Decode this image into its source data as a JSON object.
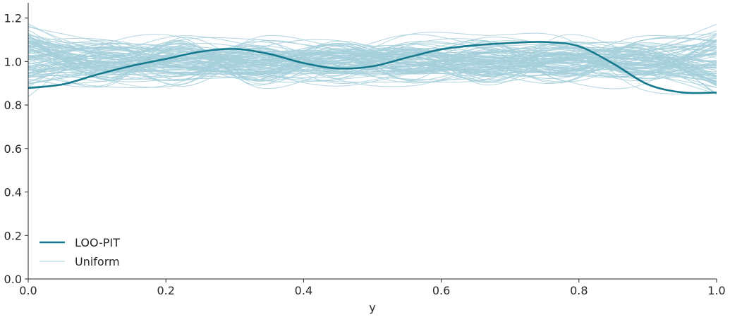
{
  "chart_data": {
    "type": "line",
    "title": "",
    "xlabel": "y",
    "ylabel": "",
    "xlim": [
      0,
      1
    ],
    "ylim": [
      0,
      1.27
    ],
    "x_ticks": [
      "0.0",
      "0.2",
      "0.4",
      "0.6",
      "0.8",
      "1.0"
    ],
    "y_ticks": [
      "0.0",
      "0.2",
      "0.4",
      "0.6",
      "0.8",
      "1.0",
      "1.2"
    ],
    "grid": false,
    "legend_position": "lower-left",
    "series": [
      {
        "name": "LOO-PIT",
        "color": "#167a8e",
        "x": [
          0.0,
          0.05,
          0.1,
          0.15,
          0.2,
          0.25,
          0.3,
          0.35,
          0.4,
          0.45,
          0.5,
          0.55,
          0.6,
          0.65,
          0.7,
          0.75,
          0.8,
          0.85,
          0.9,
          0.95,
          1.0
        ],
        "y": [
          0.878,
          0.895,
          0.94,
          0.98,
          1.012,
          1.045,
          1.058,
          1.035,
          0.993,
          0.968,
          0.978,
          1.018,
          1.056,
          1.075,
          1.085,
          1.09,
          1.07,
          0.99,
          0.895,
          0.858,
          0.857
        ]
      },
      {
        "name": "Uniform",
        "color": "#a5cfdb",
        "note_count": 100,
        "generated": true
      }
    ]
  },
  "legend": {
    "entries": [
      {
        "label": "LOO-PIT",
        "color": "#167a8e"
      },
      {
        "label": "Uniform",
        "color": "#a5cfdb"
      }
    ]
  }
}
